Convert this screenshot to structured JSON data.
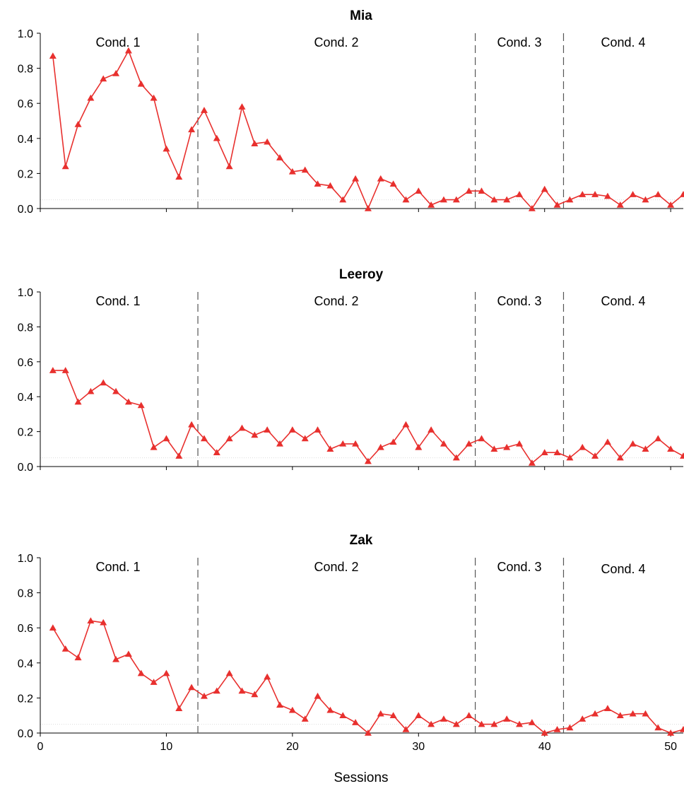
{
  "chart_data": {
    "type": "line",
    "series_color": "#e8302e",
    "xlabel": "Sessions",
    "x_ticks": [
      0,
      10,
      20,
      30,
      40,
      50
    ],
    "y_ticks": [
      "0.0",
      "0.2",
      "0.4",
      "0.6",
      "0.8",
      "1.0"
    ],
    "ylim": [
      0,
      1
    ],
    "xlim": [
      0,
      51
    ],
    "phase_lines": [
      12.5,
      34.5,
      41.5
    ],
    "conditions": [
      "Cond. 1",
      "Cond. 2",
      "Cond. 3",
      "Cond. 4"
    ],
    "panels": [
      {
        "title": "Mia",
        "x": [
          1,
          2,
          3,
          4,
          5,
          6,
          7,
          8,
          9,
          10,
          11,
          12,
          13,
          14,
          15,
          16,
          17,
          18,
          19,
          20,
          21,
          22,
          23,
          24,
          25,
          26,
          27,
          28,
          29,
          30,
          31,
          32,
          33,
          34,
          35,
          36,
          37,
          38,
          39,
          40,
          41,
          42,
          43,
          44,
          45,
          46,
          47,
          48,
          49,
          50,
          51
        ],
        "values": [
          0.87,
          0.24,
          0.48,
          0.63,
          0.74,
          0.77,
          0.9,
          0.71,
          0.63,
          0.34,
          0.18,
          0.45,
          0.56,
          0.4,
          0.24,
          0.58,
          0.37,
          0.38,
          0.29,
          0.21,
          0.22,
          0.14,
          0.13,
          0.05,
          0.17,
          0.0,
          0.17,
          0.14,
          0.05,
          0.1,
          0.02,
          0.05,
          0.05,
          0.1,
          0.1,
          0.05,
          0.05,
          0.08,
          0.0,
          0.11,
          0.02,
          0.05,
          0.08,
          0.08,
          0.07,
          0.02,
          0.08,
          0.05,
          0.08,
          0.02,
          0.08
        ]
      },
      {
        "title": "Leeroy",
        "x": [
          1,
          2,
          3,
          4,
          5,
          6,
          7,
          8,
          9,
          10,
          11,
          12,
          13,
          14,
          15,
          16,
          17,
          18,
          19,
          20,
          21,
          22,
          23,
          24,
          25,
          26,
          27,
          28,
          29,
          30,
          31,
          32,
          33,
          34,
          35,
          36,
          37,
          38,
          39,
          40,
          41,
          42,
          43,
          44,
          45,
          46,
          47,
          48,
          49,
          50,
          51
        ],
        "values": [
          0.55,
          0.55,
          0.37,
          0.43,
          0.48,
          0.43,
          0.37,
          0.35,
          0.11,
          0.16,
          0.06,
          0.24,
          0.16,
          0.08,
          0.16,
          0.22,
          0.18,
          0.21,
          0.13,
          0.21,
          0.16,
          0.21,
          0.1,
          0.13,
          0.13,
          0.03,
          0.11,
          0.14,
          0.24,
          0.11,
          0.21,
          0.13,
          0.05,
          0.13,
          0.16,
          0.1,
          0.11,
          0.13,
          0.02,
          0.08,
          0.08,
          0.05,
          0.11,
          0.06,
          0.14,
          0.05,
          0.13,
          0.1,
          0.16,
          0.1,
          0.06
        ]
      },
      {
        "title": "Zak",
        "x": [
          1,
          2,
          3,
          4,
          5,
          6,
          7,
          8,
          9,
          10,
          11,
          12,
          13,
          14,
          15,
          16,
          17,
          18,
          19,
          20,
          21,
          22,
          23,
          24,
          25,
          26,
          27,
          28,
          29,
          30,
          31,
          32,
          33,
          34,
          35,
          36,
          37,
          38,
          39,
          40,
          41,
          42,
          43,
          44,
          45,
          46,
          47,
          48,
          49,
          50,
          51
        ],
        "values": [
          0.6,
          0.48,
          0.43,
          0.64,
          0.63,
          0.42,
          0.45,
          0.34,
          0.29,
          0.34,
          0.14,
          0.26,
          0.21,
          0.24,
          0.34,
          0.24,
          0.22,
          0.32,
          0.16,
          0.13,
          0.08,
          0.21,
          0.13,
          0.1,
          0.06,
          0.0,
          0.11,
          0.1,
          0.02,
          0.1,
          0.05,
          0.08,
          0.05,
          0.1,
          0.05,
          0.05,
          0.08,
          0.05,
          0.06,
          0.0,
          0.02,
          0.03,
          0.08,
          0.11,
          0.14,
          0.1,
          0.11,
          0.11,
          0.03,
          0.0,
          0.02
        ]
      }
    ]
  }
}
